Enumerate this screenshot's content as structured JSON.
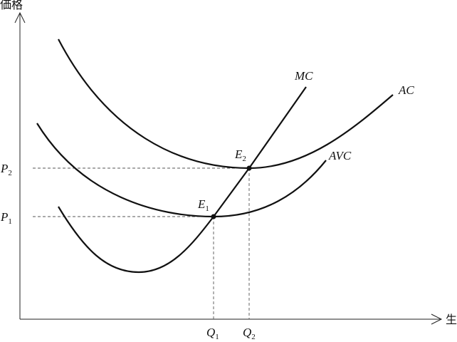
{
  "axes": {
    "y_label": "価格",
    "x_label": "生"
  },
  "curves": {
    "mc": "MC",
    "ac": "AC",
    "avc": "AVC"
  },
  "points": [
    {
      "main": "E",
      "sub": "1"
    },
    {
      "main": "E",
      "sub": "2"
    }
  ],
  "prices": [
    {
      "main": "P",
      "sub": "1"
    },
    {
      "main": "P",
      "sub": "2"
    }
  ],
  "quantities": [
    {
      "main": "Q",
      "sub": "1"
    },
    {
      "main": "Q",
      "sub": "2"
    }
  ]
}
